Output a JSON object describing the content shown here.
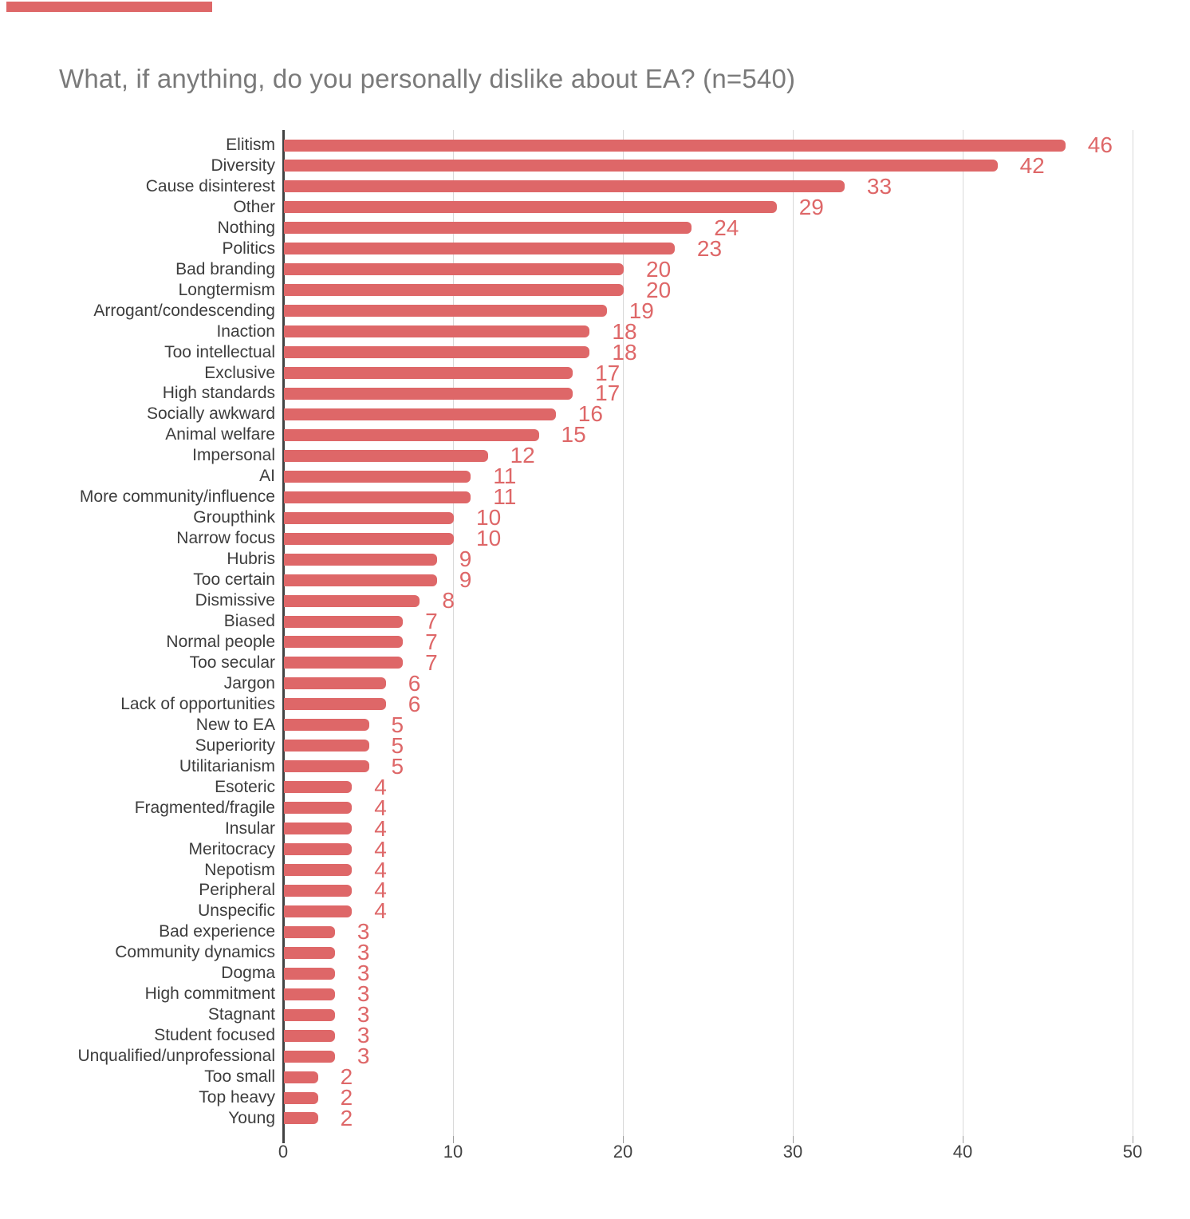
{
  "title": "What, if anything, do you personally dislike about EA? (n=540)",
  "top_fragment": {
    "description": "cut-off bar from chart above",
    "color": "#de6768"
  },
  "colors": {
    "bar": "#de6768",
    "value_label": "#de6768",
    "title": "#7a7a7a",
    "category_label": "#3d3d3d",
    "axis_label": "#424242",
    "gridline": "#d9d9d9",
    "axis_line": "#424242",
    "tick": "#9e9e9e",
    "background": "#ffffff"
  },
  "chart_data": {
    "type": "bar",
    "orientation": "horizontal",
    "title": "What, if anything, do you personally dislike about EA? (n=540)",
    "n": 540,
    "categories": [
      "Elitism",
      "Diversity",
      "Cause disinterest",
      "Other",
      "Nothing",
      "Politics",
      "Bad branding",
      "Longtermism",
      "Arrogant/condescending",
      "Inaction",
      "Too intellectual",
      "Exclusive",
      "High standards",
      "Socially awkward",
      "Animal welfare",
      "Impersonal",
      "AI",
      "More community/influence",
      "Groupthink",
      "Narrow focus",
      "Hubris",
      "Too certain",
      "Dismissive",
      "Biased",
      "Normal people",
      "Too secular",
      "Jargon",
      "Lack of opportunities",
      "New to EA",
      "Superiority",
      "Utilitarianism",
      "Esoteric",
      "Fragmented/fragile",
      "Insular",
      "Meritocracy",
      "Nepotism",
      "Peripheral",
      "Unspecific",
      "Bad experience",
      "Community dynamics",
      "Dogma",
      "High commitment",
      "Stagnant",
      "Student focused",
      "Unqualified/unprofessional",
      "Too small",
      "Top heavy",
      "Young"
    ],
    "values": [
      46,
      42,
      33,
      29,
      24,
      23,
      20,
      20,
      19,
      18,
      18,
      17,
      17,
      16,
      15,
      12,
      11,
      11,
      10,
      10,
      9,
      9,
      8,
      7,
      7,
      7,
      6,
      6,
      5,
      5,
      5,
      4,
      4,
      4,
      4,
      4,
      4,
      4,
      3,
      3,
      3,
      3,
      3,
      3,
      3,
      2,
      2,
      2
    ],
    "data_labels": true,
    "xlabel": "",
    "ylabel": "",
    "xlim": [
      0,
      50
    ],
    "x_ticks": [
      0,
      10,
      20,
      30,
      40,
      50
    ],
    "grid": "vertical",
    "legend": "none"
  }
}
